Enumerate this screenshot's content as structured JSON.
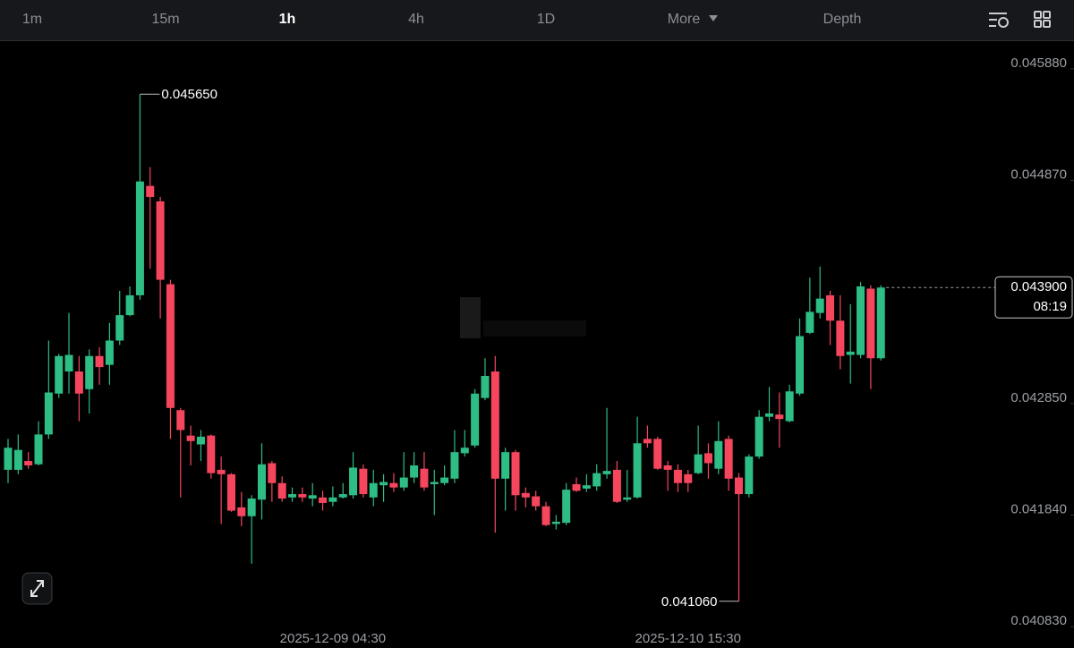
{
  "toolbar": {
    "tabs": [
      "1m",
      "15m",
      "1h",
      "4h",
      "1D",
      "More",
      "Depth"
    ]
  },
  "chart_data": {
    "type": "candlestick",
    "categories": [
      null,
      null,
      null,
      null,
      null,
      null,
      null,
      null,
      null,
      null,
      null,
      null,
      null,
      null,
      null,
      null,
      null,
      null,
      null,
      null,
      null,
      null,
      null,
      null,
      null,
      null,
      null,
      null,
      null,
      null,
      null,
      null,
      "2025-12-09 04:30",
      null,
      null,
      null,
      null,
      null,
      null,
      null,
      null,
      null,
      null,
      null,
      null,
      null,
      null,
      null,
      null,
      null,
      null,
      null,
      null,
      null,
      null,
      null,
      null,
      null,
      null,
      null,
      null,
      null,
      null,
      null,
      null,
      null,
      null,
      "2025-12-10 15:30",
      null,
      null,
      null,
      null,
      null,
      null,
      null,
      null,
      null,
      null,
      null,
      null,
      null,
      null,
      null,
      null,
      null,
      null,
      null
    ],
    "open": [
      0.04225,
      0.04225,
      0.04233,
      0.0423,
      0.04257,
      0.04294,
      0.04314,
      0.04314,
      0.04298,
      0.04328,
      0.0432,
      0.04342,
      0.04365,
      0.04383,
      0.04482,
      0.04468,
      0.04393,
      0.04279,
      0.04256,
      0.04248,
      0.04256,
      0.04225,
      0.04221,
      0.04191,
      0.04183,
      0.04198,
      0.04231,
      0.04213,
      0.042,
      0.04203,
      0.04199,
      0.042,
      0.04196,
      0.042,
      0.04202,
      0.04226,
      0.042,
      0.04211,
      0.04213,
      0.04209,
      0.04218,
      0.04226,
      0.04212,
      0.04213,
      0.04217,
      0.0424,
      0.04247,
      0.0429,
      0.04314,
      0.04217,
      0.04241,
      0.04204,
      0.04201,
      0.04192,
      0.04176,
      0.04177,
      0.04212,
      0.04208,
      0.0421,
      0.04221,
      0.04225,
      0.04198,
      0.042,
      0.04253,
      0.04253,
      0.04229,
      0.04225,
      0.04221,
      0.04222,
      0.0424,
      0.04226,
      0.04253,
      0.04218,
      0.04203,
      0.04237,
      0.04273,
      0.04275,
      0.04269,
      0.04294,
      0.04349,
      0.04367,
      0.04383,
      0.0436,
      0.04329,
      0.04329,
      0.04389,
      0.04326
    ],
    "high": [
      0.04253,
      0.04257,
      0.04241,
      0.04269,
      0.04342,
      0.0433,
      0.04367,
      0.04328,
      0.04334,
      0.04336,
      0.04358,
      0.04387,
      0.04391,
      0.04565,
      0.04499,
      0.04472,
      0.04397,
      0.04281,
      0.04265,
      0.04261,
      0.04257,
      0.04237,
      0.04222,
      0.04205,
      0.04202,
      0.04249,
      0.04233,
      0.04219,
      0.04209,
      0.04209,
      0.04213,
      0.04206,
      0.0421,
      0.04213,
      0.04241,
      0.0423,
      0.04225,
      0.04221,
      0.04222,
      0.04241,
      0.04241,
      0.04241,
      0.04225,
      0.04229,
      0.04261,
      0.04261,
      0.04298,
      0.04326,
      0.04328,
      0.04245,
      0.04243,
      0.04209,
      0.04206,
      0.04196,
      0.04184,
      0.04213,
      0.04218,
      0.04221,
      0.0423,
      0.04281,
      0.04233,
      0.04225,
      0.04273,
      0.04265,
      0.04255,
      0.04233,
      0.0423,
      0.04225,
      0.04265,
      0.04249,
      0.04269,
      0.04256,
      0.04222,
      0.04239,
      0.04279,
      0.043,
      0.04295,
      0.04302,
      0.04362,
      0.04399,
      0.04409,
      0.04387,
      0.04383,
      0.04375,
      0.04395,
      0.04392,
      0.04392
    ],
    "low": [
      0.04213,
      0.04221,
      0.04226,
      0.04229,
      0.04253,
      0.0429,
      0.04294,
      0.04269,
      0.04276,
      0.04302,
      0.04302,
      0.04338,
      0.04364,
      0.04379,
      0.04407,
      0.04362,
      0.04253,
      0.042,
      0.04229,
      0.04233,
      0.04217,
      0.04176,
      0.04187,
      0.04174,
      0.0414,
      0.0418,
      0.04196,
      0.04196,
      0.04196,
      0.04196,
      0.04192,
      0.04188,
      0.04192,
      0.04199,
      0.04199,
      0.042,
      0.04192,
      0.04196,
      0.04205,
      0.04206,
      0.04213,
      0.04206,
      0.04184,
      0.04211,
      0.04213,
      0.04237,
      0.04245,
      0.04288,
      0.04168,
      0.04188,
      0.04188,
      0.04191,
      0.04188,
      0.04174,
      0.04171,
      0.04175,
      0.04205,
      0.04205,
      0.04206,
      0.04217,
      0.04195,
      0.04196,
      0.04199,
      0.04245,
      0.04225,
      0.04206,
      0.04205,
      0.04205,
      0.04221,
      0.04217,
      0.04221,
      0.04206,
      0.04106,
      0.042,
      0.04235,
      0.04269,
      0.04245,
      0.04268,
      0.04292,
      0.04348,
      0.04362,
      0.04338,
      0.04316,
      0.04303,
      0.04326,
      0.04298,
      0.04324
    ],
    "close": [
      0.04245,
      0.04243,
      0.04229,
      0.04257,
      0.04295,
      0.04328,
      0.04329,
      0.04294,
      0.04328,
      0.04318,
      0.04342,
      0.04365,
      0.04383,
      0.04486,
      0.04472,
      0.04397,
      0.04281,
      0.04261,
      0.04251,
      0.04255,
      0.04222,
      0.04221,
      0.04188,
      0.04183,
      0.04199,
      0.0423,
      0.04213,
      0.04199,
      0.04203,
      0.042,
      0.04202,
      0.04195,
      0.042,
      0.04203,
      0.04227,
      0.04203,
      0.04213,
      0.04214,
      0.04209,
      0.04218,
      0.04229,
      0.04209,
      0.04214,
      0.04218,
      0.04241,
      0.04245,
      0.04294,
      0.0431,
      0.04217,
      0.04241,
      0.04202,
      0.042,
      0.04192,
      0.04175,
      0.04178,
      0.04207,
      0.04206,
      0.04211,
      0.04222,
      0.04224,
      0.04196,
      0.042,
      0.04249,
      0.04249,
      0.04226,
      0.04225,
      0.04213,
      0.04213,
      0.04239,
      0.04231,
      0.04251,
      0.04217,
      0.04203,
      0.04237,
      0.04273,
      0.04276,
      0.04271,
      0.04296,
      0.04346,
      0.04368,
      0.0438,
      0.0436,
      0.04328,
      0.04332,
      0.04391,
      0.04326,
      0.0439
    ],
    "colors": {
      "up": "#2ebd85",
      "down": "#f6465d"
    },
    "ylim": [
      0.04071,
      0.04613
    ],
    "yticks": [
      {
        "value": 0.04083,
        "label": "0.040830"
      },
      {
        "value": 0.04184,
        "label": "0.041840"
      },
      {
        "value": 0.04285,
        "label": "0.042850"
      },
      {
        "value": 0.04487,
        "label": "0.044870"
      },
      {
        "value": 0.04588,
        "label": "0.045880"
      }
    ],
    "grid": false,
    "high_label": "0.045650",
    "low_label": "0.041060",
    "last_price_label": "0.043900",
    "countdown": "08:19"
  }
}
